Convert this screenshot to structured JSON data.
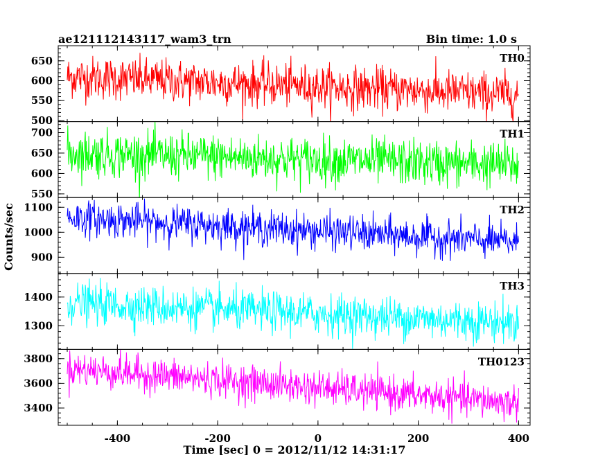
{
  "header": {
    "title": "ae121112143117_wam3_trn",
    "bin_time": "Bin time: 1.0 s"
  },
  "axes": {
    "ylabel": "Counts/sec",
    "xlabel": "Time [sec] 0 = 2012/11/12 14:31:17"
  },
  "chart_data": {
    "type": "line",
    "x_range": [
      -500,
      400
    ],
    "bin_time_s": 1.0,
    "xlim": [
      -518,
      423
    ],
    "x_ticks": [
      -400,
      -200,
      0,
      200,
      400
    ],
    "xlabel": "Time [sec] 0 = 2012/11/12 14:31:17",
    "ylabel": "Counts/sec",
    "title": "ae121112143117_wam3_trn",
    "series": [
      {
        "name": "TH0",
        "color": "#ff0000",
        "ylim": [
          497,
          688
        ],
        "yticks": [
          500,
          550,
          600,
          650
        ],
        "trend": [
          610,
          565
        ],
        "noise_sd": 27
      },
      {
        "name": "TH1",
        "color": "#00ff00",
        "ylim": [
          541,
          727
        ],
        "yticks": [
          550,
          600,
          650,
          700
        ],
        "trend": [
          650,
          620
        ],
        "noise_sd": 28
      },
      {
        "name": "TH2",
        "color": "#0000ff",
        "ylim": [
          835,
          1139
        ],
        "yticks": [
          900,
          1000,
          1100
        ],
        "trend": [
          1060,
          960
        ],
        "noise_sd": 35
      },
      {
        "name": "TH3",
        "color": "#00ffff",
        "ylim": [
          1218,
          1482
        ],
        "yticks": [
          1300,
          1400
        ],
        "trend": [
          1380,
          1310
        ],
        "noise_sd": 35
      },
      {
        "name": "TH0123",
        "color": "#ff00ff",
        "ylim": [
          3260,
          3875
        ],
        "yticks": [
          3400,
          3600,
          3800
        ],
        "trend": [
          3720,
          3440
        ],
        "noise_sd": 70
      }
    ]
  }
}
